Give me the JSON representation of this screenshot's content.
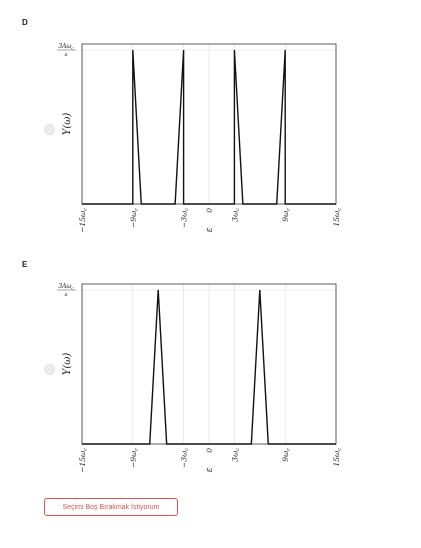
{
  "options": [
    {
      "letter": "D",
      "chart_data": {
        "type": "line",
        "ylabel": "Y(ω)",
        "xlabel": "ε",
        "xlim": [
          -15,
          15
        ],
        "ylim": [
          0,
          1
        ],
        "ytick_label_num": "3Aω",
        "ytick_label_sub": "c",
        "ytick_label_den": "π",
        "xticks": [
          -15,
          -9,
          -3,
          0,
          3,
          9,
          15
        ],
        "xtick_labels": [
          "−15ω",
          "−9ω",
          "−3ω",
          "0",
          "3ω",
          "9ω",
          "15ω"
        ],
        "xtick_sub": "c",
        "grid": true,
        "series": [
          {
            "x": [
              -15,
              -9,
              -9,
              -8,
              -8,
              -4,
              -3,
              -3,
              3,
              3,
              4,
              8,
              8,
              9,
              9,
              15
            ],
            "y": [
              0,
              0,
              1,
              0,
              0,
              0,
              1,
              0,
              0,
              1,
              0,
              0,
              0,
              1,
              0,
              0
            ]
          }
        ]
      }
    },
    {
      "letter": "E",
      "chart_data": {
        "type": "line",
        "ylabel": "Y(ω)",
        "xlabel": "ε",
        "xlim": [
          -15,
          15
        ],
        "ylim": [
          0,
          1
        ],
        "ytick_label_num": "3Aω",
        "ytick_label_sub": "c",
        "ytick_label_den": "π",
        "xticks": [
          -15,
          -9,
          -3,
          0,
          3,
          9,
          15
        ],
        "xtick_labels": [
          "−15ω",
          "−9ω",
          "−3ω",
          "0",
          "3ω",
          "9ω",
          "15ω"
        ],
        "xtick_sub": "c",
        "grid": true,
        "series": [
          {
            "x": [
              -15,
              -7,
              -6,
              -5,
              5,
              6,
              7,
              15
            ],
            "y": [
              0,
              0,
              1,
              0,
              0,
              1,
              0,
              0
            ]
          }
        ]
      }
    }
  ],
  "clear_button_label": "Seçimi Boş Bırakmak İstiyorum"
}
